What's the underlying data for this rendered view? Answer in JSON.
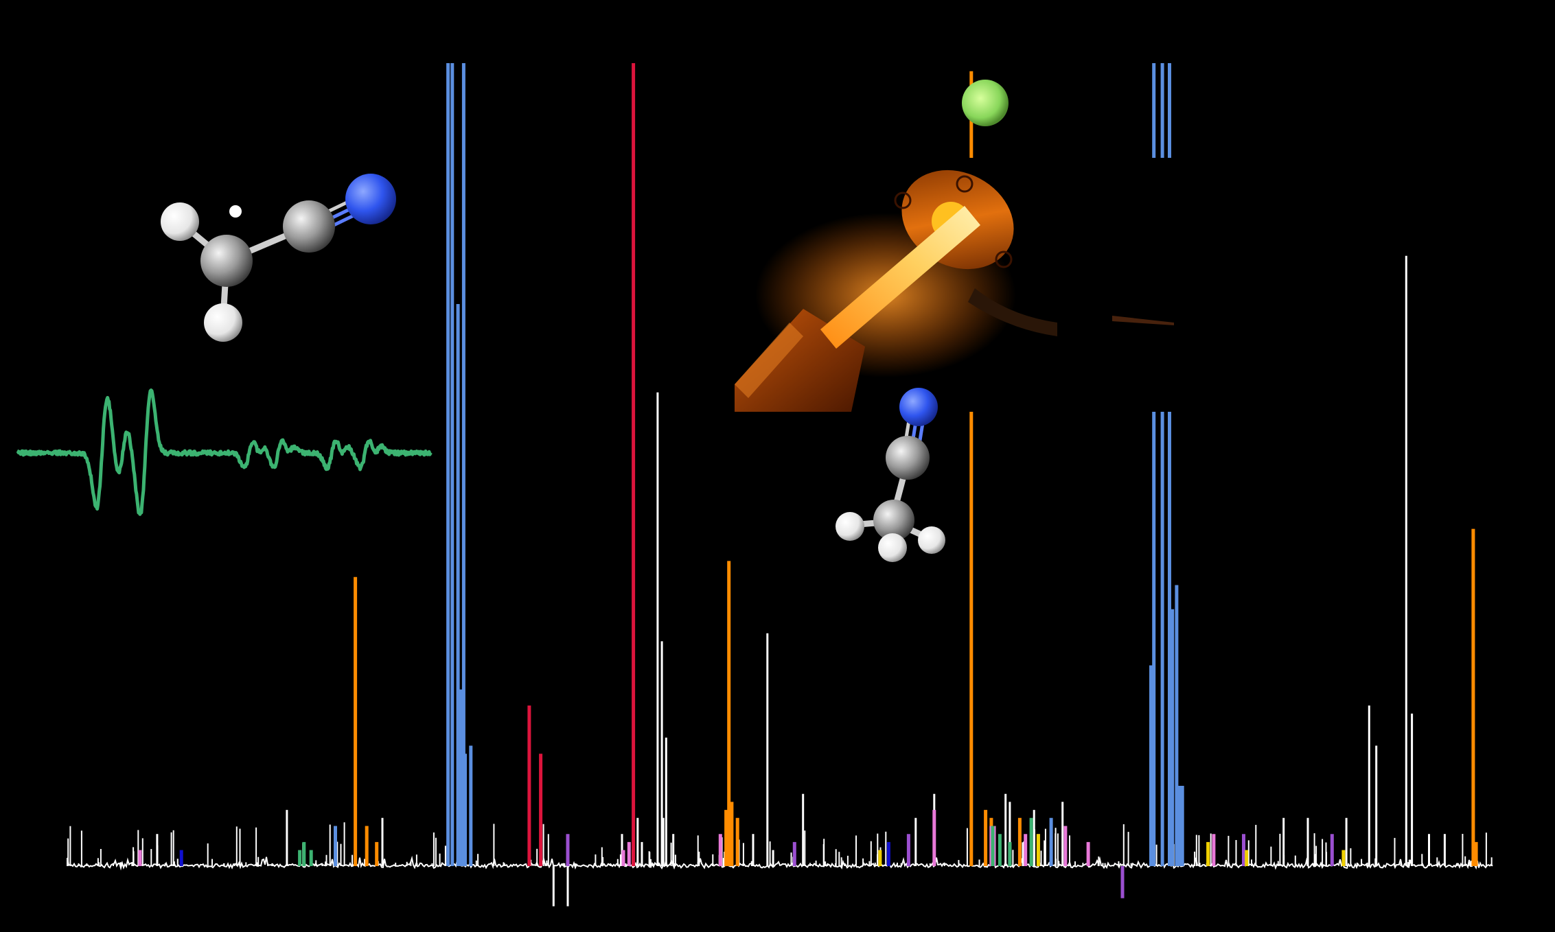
{
  "colors": {
    "background": "#000000",
    "baseline": "#ffffff",
    "epr_trace": "#3cb371",
    "blue": "#5b8fe0",
    "red": "#dc143c",
    "orange": "#ff8c00",
    "white": "#ffffff",
    "pink": "#e878d8",
    "purple": "#9b4fd0",
    "green": "#3cb371",
    "yellow": "#f0d000",
    "navy": "#1010d0",
    "atom_carbon": "#a8a8a8",
    "atom_hydrogen": "#f2f2f2",
    "atom_nitrogen": "#3355ee",
    "discharge_glow": "#ffb030"
  },
  "illustrations": {
    "radical_molecule": {
      "name": "cyanomethyl-radical",
      "atoms": [
        "H",
        "H",
        "C",
        "C",
        "N"
      ],
      "unpaired_electron": true
    },
    "acetonitrile_molecule": {
      "name": "acetonitrile",
      "atoms": [
        "H",
        "H",
        "H",
        "C",
        "C",
        "N"
      ]
    },
    "discharge_source": {
      "name": "discharge-nozzle-photo"
    },
    "epr_spectrum": {
      "name": "epr-derivative-trace"
    }
  },
  "chart_data": {
    "type": "bar",
    "xlim": [
      0,
      1000
    ],
    "ylim": [
      -5,
      100
    ],
    "grid": false,
    "legend": "none",
    "series": [
      {
        "color_key": "blue",
        "x": [
          267,
          270,
          274,
          279,
          276,
          278,
          283,
          188,
          762,
          768,
          773,
          760,
          778,
          775,
          782,
          780,
          690
        ],
        "values": [
          100,
          100,
          70,
          14,
          22,
          100,
          15,
          5,
          100,
          100,
          100,
          25,
          35,
          32,
          10,
          10,
          6
        ]
      },
      {
        "color_key": "red",
        "x": [
          397,
          324,
          332
        ],
        "values": [
          100,
          20,
          14
        ]
      },
      {
        "color_key": "orange",
        "x": [
          202,
          464,
          634,
          986,
          210,
          217,
          462,
          466,
          470,
          644,
          648,
          668,
          988
        ],
        "values": [
          36,
          38,
          99,
          42,
          5,
          3,
          7,
          8,
          6,
          7,
          6,
          6,
          3
        ]
      },
      {
        "color_key": "white",
        "x": [
          341,
          351,
          414,
          417,
          420,
          491,
          939,
          913,
          918,
          943,
          389,
          400,
          403,
          418,
          425,
          495,
          516,
          608,
          595,
          658,
          661,
          678,
          698,
          853,
          870,
          897,
          955,
          966,
          63,
          154,
          221,
          481
        ],
        "values": [
          -5,
          -5,
          59,
          28,
          16,
          29,
          76,
          20,
          15,
          19,
          4,
          6,
          3,
          6,
          4,
          2,
          9,
          9,
          6,
          9,
          8,
          7,
          8,
          6,
          6,
          6,
          4,
          4,
          4,
          7,
          6,
          4
        ]
      },
      {
        "color_key": "pink",
        "x": [
          51,
          394,
          390,
          458,
          608,
          648,
          650,
          661,
          672,
          716,
          700,
          804
        ],
        "values": [
          2,
          3,
          2,
          4,
          7,
          5,
          5,
          3,
          4,
          3,
          5,
          4
        ]
      },
      {
        "color_key": "purple",
        "x": [
          351,
          510,
          590,
          681,
          825,
          887,
          740
        ],
        "values": [
          4,
          3,
          4,
          4,
          4,
          4,
          -4
        ]
      },
      {
        "color_key": "green",
        "x": [
          163,
          166,
          171,
          649,
          654,
          661,
          676
        ],
        "values": [
          2,
          3,
          2,
          5,
          4,
          3,
          6
        ]
      },
      {
        "color_key": "yellow",
        "x": [
          570,
          681,
          800,
          827,
          895
        ],
        "values": [
          2,
          4,
          3,
          2,
          2
        ]
      },
      {
        "color_key": "navy",
        "x": [
          80,
          576
        ],
        "values": [
          2,
          3
        ]
      }
    ]
  }
}
